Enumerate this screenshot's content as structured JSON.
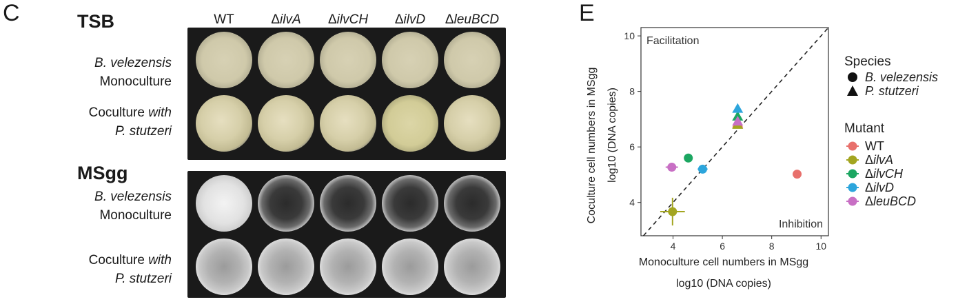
{
  "panel_c": {
    "letter": "C",
    "media": [
      {
        "name": "TSB",
        "rows": [
          {
            "line1": "B. velezensis",
            "line2": "Monoculture",
            "line1_italic": true,
            "line2_italic": false,
            "well_style": "tsb-mono"
          },
          {
            "line1_a": "Coculture ",
            "line1_b": "with",
            "line2": "P. stutzeri",
            "line2_italic": true,
            "well_style": "tsb-co"
          }
        ]
      },
      {
        "name": "MSgg",
        "rows": [
          {
            "line1": "B. velezensis",
            "line2": "Monoculture",
            "line1_italic": true,
            "line2_italic": false,
            "well_style": "ms-empty"
          },
          {
            "line1_a": "Coculture ",
            "line1_b": "with",
            "line2": "P. stutzeri",
            "line2_italic": true,
            "well_style": "ms-co"
          }
        ]
      }
    ],
    "columns": [
      {
        "prefix": "",
        "label": "WT",
        "italic": false
      },
      {
        "prefix": "Δ",
        "label": "ilvA",
        "italic": true
      },
      {
        "prefix": "Δ",
        "label": "ilvCH",
        "italic": true
      },
      {
        "prefix": "Δ",
        "label": "ilvD",
        "italic": true
      },
      {
        "prefix": "Δ",
        "label": "leuBCD",
        "italic": true
      }
    ]
  },
  "panel_e": {
    "letter": "E",
    "chart_data": {
      "type": "scatter",
      "xlabel": "Monoculture cell numbers in MSgg",
      "xlabel2": "log10 (DNA copies)",
      "ylabel": "Coculture cell numbers in MSgg",
      "ylabel2": "log10 (DNA copies)",
      "xlim": [
        2.7,
        10.3
      ],
      "ylim": [
        2.8,
        10.3
      ],
      "xticks": [
        4,
        6,
        8,
        10
      ],
      "yticks": [
        4,
        6,
        8,
        10
      ],
      "grid": false,
      "diagonal": "y = x (dashed)",
      "annotations": [
        "Facilitation",
        "Inhibition"
      ],
      "legend_position": "right",
      "legends": {
        "species_title": "Species",
        "species": [
          {
            "name": "B. velezensis",
            "shape": "circle"
          },
          {
            "name": "P. stutzeri",
            "shape": "triangle"
          }
        ],
        "mutant_title": "Mutant",
        "mutants": [
          {
            "prefix": "",
            "name": "WT",
            "italic": false,
            "color": "#E8706C"
          },
          {
            "prefix": "Δ",
            "name": "ilvA",
            "italic": true,
            "color": "#A3A520"
          },
          {
            "prefix": "Δ",
            "name": "ilvCH",
            "italic": true,
            "color": "#1BA661"
          },
          {
            "prefix": "Δ",
            "name": "ilvD",
            "italic": true,
            "color": "#2CA5DC"
          },
          {
            "prefix": "Δ",
            "name": "leuBCD",
            "italic": true,
            "color": "#C86FC4"
          }
        ]
      },
      "points": [
        {
          "mutant": "WT",
          "species": "B. velezensis",
          "x": 9.03,
          "y": 5.02,
          "xerr": 0.08,
          "yerr": 0.06
        },
        {
          "mutant": "ilvA",
          "species": "B. velezensis",
          "x": 3.98,
          "y": 3.67,
          "xerr": 0.5,
          "yerr": 0.5
        },
        {
          "mutant": "ilvCH",
          "species": "B. velezensis",
          "x": 4.62,
          "y": 5.6,
          "xerr": 0.1,
          "yerr": 0.08
        },
        {
          "mutant": "ilvD",
          "species": "B. velezensis",
          "x": 5.2,
          "y": 5.2,
          "xerr": 0.2,
          "yerr": 0.06
        },
        {
          "mutant": "leuBCD",
          "species": "B. velezensis",
          "x": 3.95,
          "y": 5.27,
          "xerr": 0.25,
          "yerr": 0.12
        },
        {
          "mutant": "WT",
          "species": "P. stutzeri",
          "x": 6.62,
          "y": 6.85,
          "xerr": 0.05,
          "yerr": 0.05
        },
        {
          "mutant": "ilvA",
          "species": "P. stutzeri",
          "x": 6.62,
          "y": 6.8,
          "xerr": 0.05,
          "yerr": 0.05
        },
        {
          "mutant": "ilvCH",
          "species": "P. stutzeri",
          "x": 6.62,
          "y": 7.1,
          "xerr": 0.05,
          "yerr": 0.05
        },
        {
          "mutant": "ilvD",
          "species": "P. stutzeri",
          "x": 6.62,
          "y": 7.38,
          "xerr": 0.05,
          "yerr": 0.05
        },
        {
          "mutant": "leuBCD",
          "species": "P. stutzeri",
          "x": 6.62,
          "y": 6.92,
          "xerr": 0.05,
          "yerr": 0.05
        }
      ]
    }
  }
}
